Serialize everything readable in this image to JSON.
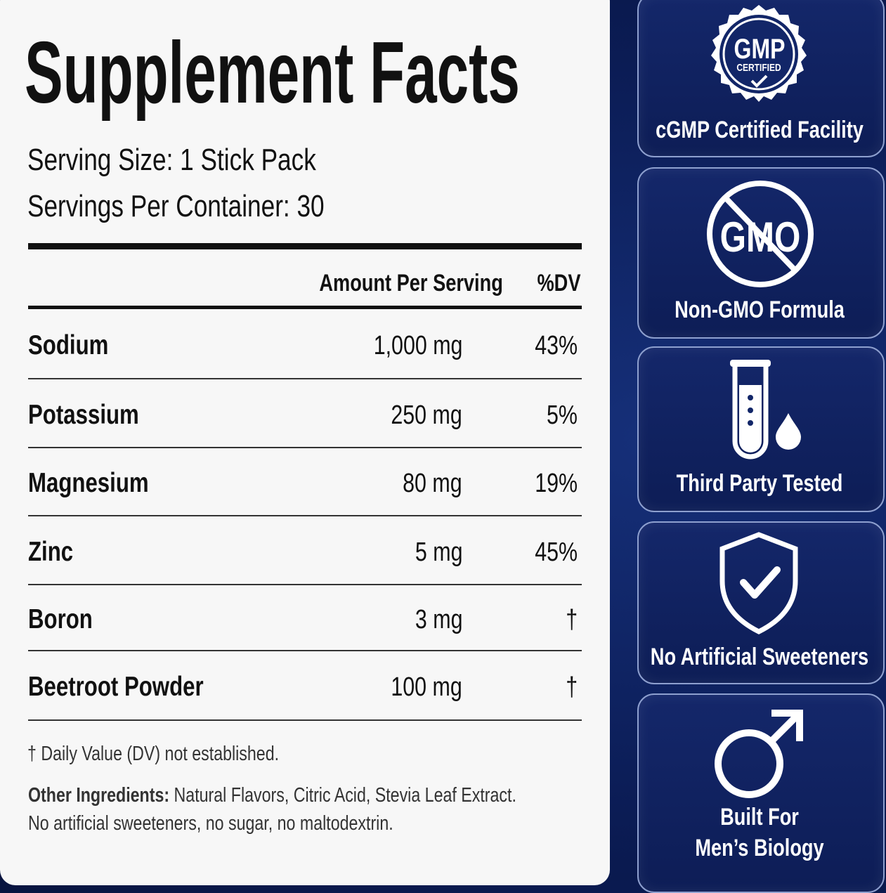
{
  "facts": {
    "title": "Supplement Facts",
    "serving_size": "Serving Size: 1 Stick Pack",
    "servings_per_container": "Servings Per Container: 30",
    "columns": [
      "Amount Per Serving",
      "%DV"
    ],
    "rows": [
      [
        "Sodium",
        "1,000 mg",
        "43%"
      ],
      [
        "Potassium",
        "250 mg",
        "5%"
      ],
      [
        "Magnesium",
        "80 mg",
        "19%"
      ],
      [
        "Zinc",
        "5 mg",
        "45%"
      ],
      [
        "Boron",
        "3 mg",
        "†"
      ],
      [
        "Beetroot Powder",
        "100 mg",
        "†"
      ]
    ],
    "footnote": "† Daily Value (DV) not established.",
    "other_label": "Other Ingredients:",
    "other_text": "Natural Flavors, Citric Acid, Stevia Leaf Extract.",
    "other_note": "No artificial sweeteners, no sugar, no maltodextrin."
  },
  "badges": [
    {
      "icon_text": "GMP",
      "icon_subtext": "CERTIFIED",
      "lines": [
        "cGMP Certified Facility"
      ]
    },
    {
      "icon_text": "GMO",
      "lines": [
        "Non-GMO Formula"
      ]
    },
    {
      "lines": [
        "Third Party Tested"
      ]
    },
    {
      "lines": [
        "No Artificial Sweeteners"
      ]
    },
    {
      "lines": [
        "Built For",
        "Men’s Biology"
      ]
    }
  ]
}
